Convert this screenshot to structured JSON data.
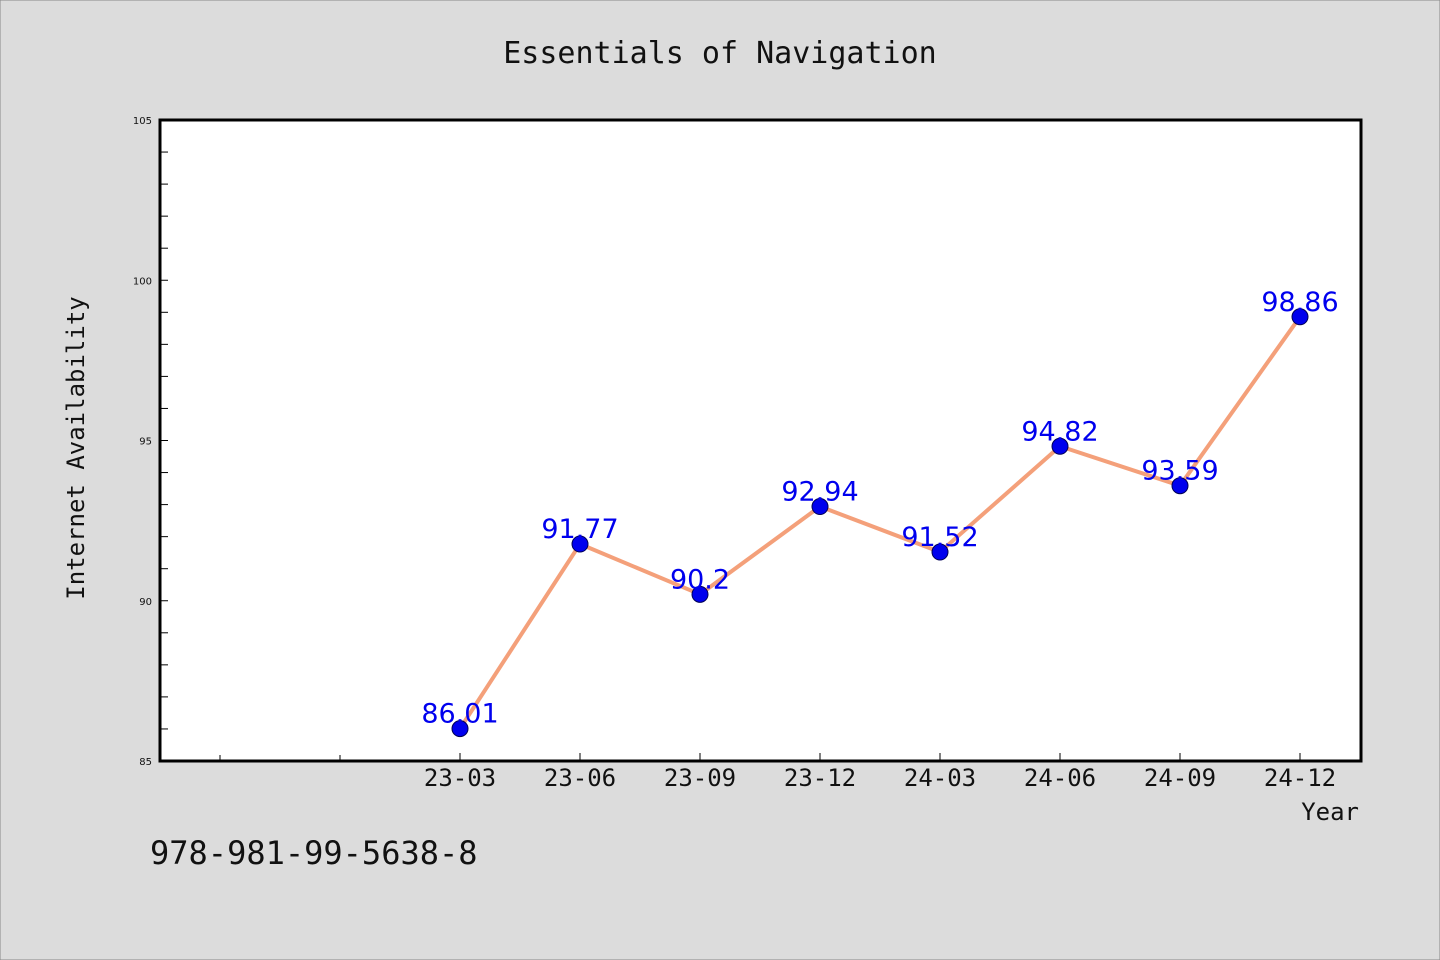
{
  "chart_data": {
    "type": "line",
    "title": "Essentials of Navigation",
    "xlabel": "Year",
    "ylabel": "Internet Availability",
    "categories": [
      "23-03",
      "23-06",
      "23-09",
      "23-12",
      "24-03",
      "24-06",
      "24-09",
      "24-12"
    ],
    "series": [
      {
        "values": [
          86.01,
          91.77,
          90.2,
          92.94,
          91.52,
          94.82,
          93.59,
          98.86
        ]
      }
    ],
    "data_labels": [
      "86.01",
      "91.77",
      "90.2",
      "92.94",
      "91.52",
      "94.82",
      "93.59",
      "98.86"
    ],
    "ylim": [
      85,
      105
    ],
    "yticks": [
      85,
      90,
      95,
      100,
      105
    ],
    "grid": false,
    "colors": {
      "line": "#f4a07a",
      "marker": "#0000ee",
      "label": "#0000ee",
      "background": "#dcdcdc",
      "plot_background": "#ffffff"
    }
  },
  "annotations": {
    "isbn": "978-981-99-5638-8"
  }
}
